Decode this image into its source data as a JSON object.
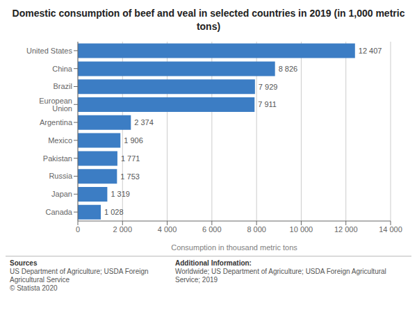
{
  "chart_data": {
    "type": "bar",
    "orientation": "horizontal",
    "title": "Domestic consumption of beef and veal in selected countries in 2019 (in 1,000 metric\ntons)",
    "categories": [
      "United States",
      "China",
      "Brazil",
      "European Union",
      "Argentina",
      "Mexico",
      "Pakistan",
      "Russia",
      "Japan",
      "Canada"
    ],
    "values": [
      12407,
      8826,
      7929,
      7911,
      2374,
      1906,
      1771,
      1753,
      1319,
      1028
    ],
    "value_labels": [
      "12 407",
      "8 826",
      "7 929",
      "7 911",
      "2 374",
      "1 906",
      "1 771",
      "1 753",
      "1 319",
      "1 028"
    ],
    "data_labels": true,
    "color": "#3c7dc4",
    "xlabel": "Consumption in thousand metric tons",
    "xlim": [
      0,
      14000
    ],
    "xticks": [
      0,
      {
        "value": 2000,
        "label": "2 000"
      },
      {
        "value": 4000,
        "label": "4 000"
      },
      {
        "value": 6000,
        "label": "6 000"
      },
      {
        "value": 8000,
        "label": "8 000"
      },
      {
        "value": 10000,
        "label": "10 000"
      },
      {
        "value": 12000,
        "label": "12 000"
      },
      {
        "value": 14000,
        "label": "14 000"
      }
    ],
    "grid": true,
    "annotations": [
      "Sources",
      "US Department of Agriculture; USDA Foreign\nAgricultural Service\n© Statista 2020",
      "Additional Information:",
      "Worldwide; US Department of Agriculture; USDA Foreign Agricultural Service; 2019"
    ]
  }
}
